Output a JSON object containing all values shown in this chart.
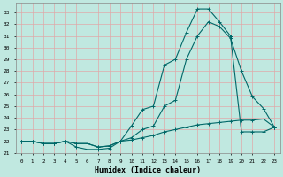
{
  "xlabel": "Humidex (Indice chaleur)",
  "bg_color": "#c0e8e0",
  "grid_color": "#e0a8a8",
  "line_color": "#006868",
  "xlim": [
    -0.5,
    23.5
  ],
  "ylim": [
    21.0,
    33.8
  ],
  "yticks": [
    21,
    22,
    23,
    24,
    25,
    26,
    27,
    28,
    29,
    30,
    31,
    32,
    33
  ],
  "xticks": [
    0,
    1,
    2,
    3,
    4,
    5,
    6,
    7,
    8,
    9,
    10,
    11,
    12,
    13,
    14,
    15,
    16,
    17,
    18,
    19,
    20,
    21,
    22,
    23
  ],
  "line1_x": [
    0,
    1,
    2,
    3,
    4,
    5,
    6,
    7,
    8,
    9,
    10,
    11,
    12,
    13,
    14,
    15,
    16,
    17,
    18,
    19,
    20,
    21,
    22,
    23
  ],
  "line1_y": [
    22.0,
    22.0,
    21.8,
    21.8,
    22.0,
    21.5,
    21.3,
    21.3,
    21.4,
    22.0,
    22.1,
    22.3,
    22.5,
    22.8,
    23.0,
    23.2,
    23.4,
    23.5,
    23.6,
    23.7,
    23.8,
    23.8,
    23.9,
    23.2
  ],
  "line2_x": [
    0,
    1,
    2,
    3,
    4,
    5,
    6,
    7,
    8,
    9,
    10,
    11,
    12,
    13,
    14,
    15,
    16,
    17,
    18,
    19,
    20,
    21,
    22,
    23
  ],
  "line2_y": [
    22.0,
    22.0,
    21.8,
    21.8,
    22.0,
    21.8,
    21.8,
    21.5,
    21.6,
    22.0,
    23.3,
    24.7,
    25.0,
    28.5,
    29.0,
    31.3,
    33.3,
    33.3,
    32.2,
    31.0,
    22.8,
    22.8,
    22.8,
    23.2
  ],
  "line3_x": [
    0,
    1,
    2,
    3,
    4,
    5,
    6,
    7,
    8,
    9,
    10,
    11,
    12,
    13,
    14,
    15,
    16,
    17,
    18,
    19,
    20,
    21,
    22,
    23
  ],
  "line3_y": [
    22.0,
    22.0,
    21.8,
    21.8,
    22.0,
    21.8,
    21.8,
    21.5,
    21.6,
    22.0,
    22.3,
    23.0,
    23.3,
    25.0,
    25.5,
    29.0,
    31.0,
    32.2,
    31.8,
    30.8,
    28.0,
    25.8,
    24.8,
    23.2
  ]
}
